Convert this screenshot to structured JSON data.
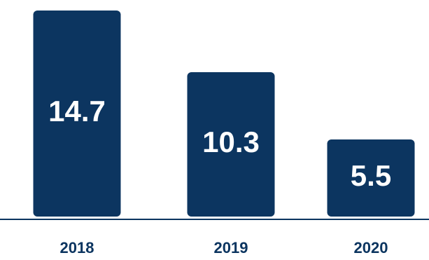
{
  "chart_data": {
    "type": "bar",
    "categories": [
      "2018",
      "2019",
      "2020"
    ],
    "values": [
      14.7,
      10.3,
      5.5
    ],
    "value_labels": [
      "14.7",
      "10.3",
      "5.5"
    ],
    "title": "",
    "xlabel": "",
    "ylabel": "",
    "ylim": [
      0,
      15
    ],
    "grid": false,
    "legend": "none",
    "colors": {
      "bar": "#0c3560",
      "label": "#ffffff",
      "axis_text": "#0c3560"
    }
  }
}
